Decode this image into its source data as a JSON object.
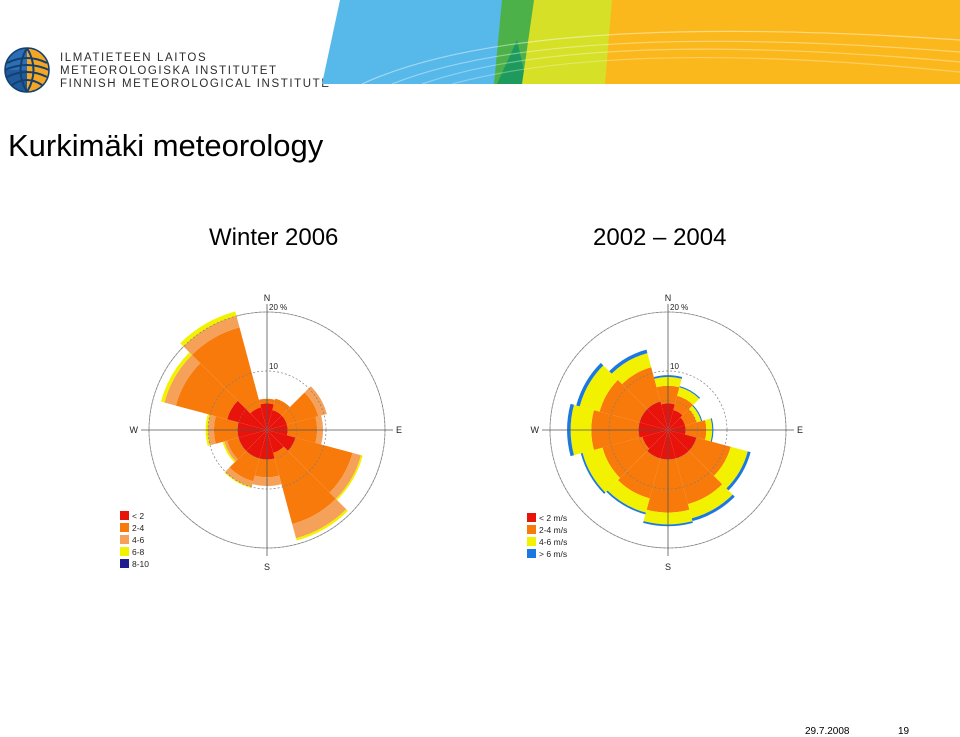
{
  "header": {
    "org_lines": [
      "ILMATIETEEN LAITOS",
      "METEOROLOGISKA INSTITUTET",
      "FINNISH METEOROLOGICAL INSTITUTE"
    ],
    "logo_icon": "fmi-globe-logo-icon"
  },
  "slide": {
    "title": "Kurkimäki meteorology",
    "subtitle_left": "Winter 2006",
    "subtitle_right": "2002 – 2004"
  },
  "footer": {
    "date": "29.7.2008",
    "page": "19"
  },
  "chart_data": [
    {
      "type": "wind-rose",
      "compass": [
        "N",
        "E",
        "S",
        "W"
      ],
      "radial_unit": "%",
      "radial_ticks": [
        10,
        20
      ],
      "radial_tick_labels": [
        "10",
        "20 %"
      ],
      "rmax": 20,
      "sector_count": 12,
      "legend": [
        "< 2",
        "2-4",
        "4-6",
        "6-8",
        "8-10"
      ],
      "legend_colors": [
        "#e8130b",
        "#f77a0a",
        "#f5a15a",
        "#f2f200",
        "#1e1e8c"
      ],
      "sectors": [
        {
          "dir": 0,
          "freq": [
            4.5,
            0.8,
            0.0,
            0.0,
            0.0
          ]
        },
        {
          "dir": 30,
          "freq": [
            3.5,
            2.0,
            0.0,
            0.0,
            0.0
          ]
        },
        {
          "dir": 60,
          "freq": [
            3.5,
            5.5,
            1.5,
            0.0,
            0.0
          ]
        },
        {
          "dir": 90,
          "freq": [
            3.5,
            5.0,
            1.0,
            0.0,
            0.0
          ]
        },
        {
          "dir": 120,
          "freq": [
            5.0,
            10.0,
            1.5,
            0.3,
            0.0
          ]
        },
        {
          "dir": 150,
          "freq": [
            4.0,
            12.5,
            2.5,
            0.4,
            0.0
          ]
        },
        {
          "dir": 180,
          "freq": [
            5.0,
            3.0,
            1.5,
            0.0,
            0.0
          ]
        },
        {
          "dir": 210,
          "freq": [
            5.0,
            4.0,
            1.0,
            0.2,
            0.0
          ]
        },
        {
          "dir": 240,
          "freq": [
            5.0,
            2.0,
            0.5,
            0.3,
            0.0
          ]
        },
        {
          "dir": 270,
          "freq": [
            5.0,
            4.0,
            1.0,
            0.4,
            0.0
          ]
        },
        {
          "dir": 300,
          "freq": [
            7.0,
            9.0,
            2.0,
            0.6,
            0.0
          ]
        },
        {
          "dir": 330,
          "freq": [
            4.0,
            14.0,
            2.0,
            0.8,
            0.0
          ]
        }
      ]
    },
    {
      "type": "wind-rose",
      "compass": [
        "N",
        "E",
        "S",
        "W"
      ],
      "radial_unit": "%",
      "radial_ticks": [
        10,
        20
      ],
      "radial_tick_labels": [
        "10",
        "20 %"
      ],
      "rmax": 20,
      "sector_count": 12,
      "legend": [
        "< 2 m/s",
        "2-4 m/s",
        "4-6 m/s",
        "> 6 m/s"
      ],
      "legend_colors": [
        "#e8130b",
        "#f77a0a",
        "#f2f200",
        "#1a78e0"
      ],
      "sectors": [
        {
          "dir": 0,
          "freq": [
            4.5,
            3.0,
            1.5,
            0.3
          ]
        },
        {
          "dir": 30,
          "freq": [
            3.5,
            2.5,
            1.5,
            0.2
          ]
        },
        {
          "dir": 60,
          "freq": [
            3.0,
            2.0,
            0.8,
            0.2
          ]
        },
        {
          "dir": 90,
          "freq": [
            3.0,
            3.5,
            1.0,
            0.2
          ]
        },
        {
          "dir": 120,
          "freq": [
            5.0,
            6.0,
            3.0,
            0.5
          ]
        },
        {
          "dir": 150,
          "freq": [
            5.0,
            8.0,
            2.5,
            0.5
          ]
        },
        {
          "dir": 180,
          "freq": [
            5.0,
            9.0,
            2.0,
            0.3
          ]
        },
        {
          "dir": 210,
          "freq": [
            5.0,
            7.0,
            2.5,
            0.3
          ]
        },
        {
          "dir": 240,
          "freq": [
            4.5,
            7.0,
            3.5,
            0.3
          ]
        },
        {
          "dir": 270,
          "freq": [
            5.0,
            8.0,
            3.5,
            0.6
          ]
        },
        {
          "dir": 300,
          "freq": [
            5.0,
            7.0,
            3.5,
            0.6
          ]
        },
        {
          "dir": 330,
          "freq": [
            5.0,
            6.0,
            2.5,
            0.6
          ]
        }
      ]
    }
  ]
}
